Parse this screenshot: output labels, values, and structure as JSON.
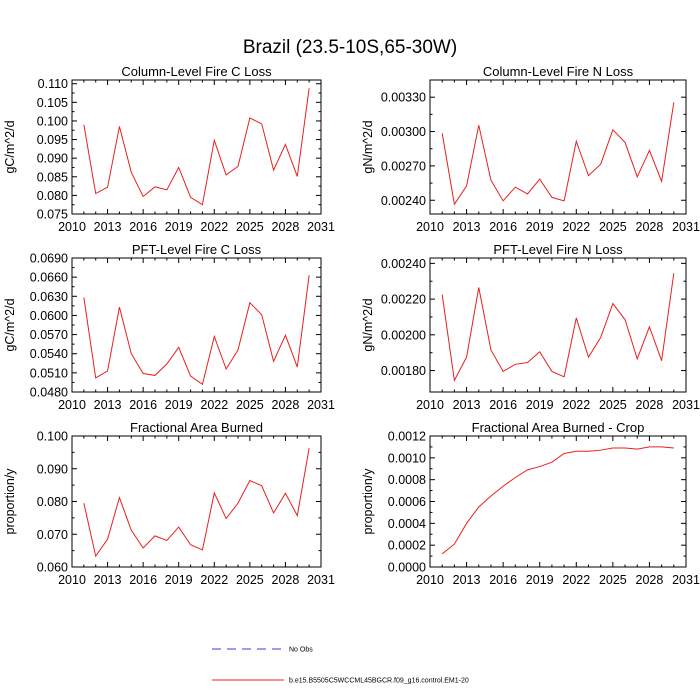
{
  "figure_title": "Brazil (23.5-10S,65-30W)",
  "colors": {
    "model": "#e8201e",
    "obs": "#3b3bd6",
    "axis": "#000000"
  },
  "legend": [
    {
      "label": "No Obs",
      "style": "dashed",
      "color": "#3b3bd6"
    },
    {
      "label": "b.e15.B5505C5WCCML45BGCR.f09_g16.control.EM1-20",
      "style": "solid",
      "color": "#e8201e"
    }
  ],
  "chart_data": [
    {
      "type": "line",
      "position": "top-left",
      "title": "Column-Level Fire C Loss",
      "ylabel": "gC/m^2/d",
      "xlabel": "",
      "xlim": [
        2010,
        2031
      ],
      "ylim": [
        0.075,
        0.111
      ],
      "xticks": [
        2010,
        2013,
        2016,
        2019,
        2022,
        2025,
        2028,
        2031
      ],
      "xtick_labels": [
        "2010",
        "2013",
        "2016",
        "2019",
        "2022",
        "2025",
        "2028",
        "2031"
      ],
      "yticks": [
        0.075,
        0.08,
        0.085,
        0.09,
        0.095,
        0.1,
        0.105,
        0.11
      ],
      "ytick_labels": [
        "0.075",
        "0.080",
        "0.085",
        "0.090",
        "0.095",
        "0.100",
        "0.105",
        "0.110"
      ],
      "series": [
        {
          "name": "b.e15.B5505C5WCCML45BGCR.f09_g16.control.EM1-20",
          "x": [
            2011,
            2012,
            2013,
            2014,
            2015,
            2016,
            2017,
            2018,
            2019,
            2020,
            2021,
            2022,
            2023,
            2024,
            2025,
            2026,
            2027,
            2028,
            2029,
            2030
          ],
          "values": [
            0.099,
            0.0805,
            0.0822,
            0.0985,
            0.0862,
            0.0797,
            0.0823,
            0.0815,
            0.0875,
            0.0795,
            0.0775,
            0.0948,
            0.0855,
            0.0878,
            0.1008,
            0.0992,
            0.0868,
            0.0937,
            0.0851,
            0.1088
          ]
        }
      ]
    },
    {
      "type": "line",
      "position": "top-right",
      "title": "Column-Level Fire N Loss",
      "ylabel": "gN/m^2/d",
      "xlabel": "",
      "xlim": [
        2010,
        2031
      ],
      "ylim": [
        0.00228,
        0.00345
      ],
      "xticks": [
        2010,
        2013,
        2016,
        2019,
        2022,
        2025,
        2028,
        2031
      ],
      "xtick_labels": [
        "2010",
        "2013",
        "2016",
        "2019",
        "2022",
        "2025",
        "2028",
        "2031"
      ],
      "yticks": [
        0.0024,
        0.0027,
        0.003,
        0.0033
      ],
      "ytick_labels": [
        "0.00240",
        "0.00270",
        "0.00300",
        "0.00330"
      ],
      "series": [
        {
          "name": "b.e15.B5505C5WCCML45BGCR.f09_g16.control.EM1-20",
          "x": [
            2011,
            2012,
            2013,
            2014,
            2015,
            2016,
            2017,
            2018,
            2019,
            2020,
            2021,
            2022,
            2023,
            2024,
            2025,
            2026,
            2027,
            2028,
            2029,
            2030
          ],
          "values": [
            0.002985,
            0.002365,
            0.002525,
            0.003055,
            0.002575,
            0.002395,
            0.002515,
            0.002455,
            0.002585,
            0.002425,
            0.002395,
            0.002915,
            0.002615,
            0.002715,
            0.003015,
            0.002905,
            0.002605,
            0.002835,
            0.002565,
            0.003255
          ]
        }
      ]
    },
    {
      "type": "line",
      "position": "middle-left",
      "title": "PFT-Level Fire C Loss",
      "ylabel": "gC/m^2/d",
      "xlabel": "",
      "xlim": [
        2010,
        2031
      ],
      "ylim": [
        0.048,
        0.069
      ],
      "xticks": [
        2010,
        2013,
        2016,
        2019,
        2022,
        2025,
        2028,
        2031
      ],
      "xtick_labels": [
        "2010",
        "2013",
        "2016",
        "2019",
        "2022",
        "2025",
        "2028",
        "2031"
      ],
      "yticks": [
        0.048,
        0.051,
        0.054,
        0.057,
        0.06,
        0.063,
        0.066,
        0.069
      ],
      "ytick_labels": [
        "0.0480",
        "0.0510",
        "0.0540",
        "0.0570",
        "0.0600",
        "0.0630",
        "0.0660",
        "0.0690"
      ],
      "series": [
        {
          "name": "b.e15.B5505C5WCCML45BGCR.f09_g16.control.EM1-20",
          "x": [
            2011,
            2012,
            2013,
            2014,
            2015,
            2016,
            2017,
            2018,
            2019,
            2020,
            2021,
            2022,
            2023,
            2024,
            2025,
            2026,
            2027,
            2028,
            2029,
            2030
          ],
          "values": [
            0.0628,
            0.0502,
            0.0513,
            0.0613,
            0.054,
            0.0509,
            0.0506,
            0.0524,
            0.055,
            0.0505,
            0.0492,
            0.0567,
            0.0516,
            0.0546,
            0.062,
            0.0601,
            0.0528,
            0.0569,
            0.0519,
            0.0663
          ]
        }
      ]
    },
    {
      "type": "line",
      "position": "middle-right",
      "title": "PFT-Level Fire N Loss",
      "ylabel": "gN/m^2/d",
      "xlabel": "",
      "xlim": [
        2010,
        2031
      ],
      "ylim": [
        0.00168,
        0.00243
      ],
      "xticks": [
        2010,
        2013,
        2016,
        2019,
        2022,
        2025,
        2028,
        2031
      ],
      "xtick_labels": [
        "2010",
        "2013",
        "2016",
        "2019",
        "2022",
        "2025",
        "2028",
        "2031"
      ],
      "yticks": [
        0.0018,
        0.002,
        0.0022,
        0.0024
      ],
      "ytick_labels": [
        "0.00180",
        "0.00200",
        "0.00220",
        "0.00240"
      ],
      "series": [
        {
          "name": "b.e15.B5505C5WCCML45BGCR.f09_g16.control.EM1-20",
          "x": [
            2011,
            2012,
            2013,
            2014,
            2015,
            2016,
            2017,
            2018,
            2019,
            2020,
            2021,
            2022,
            2023,
            2024,
            2025,
            2026,
            2027,
            2028,
            2029,
            2030
          ],
          "values": [
            0.002225,
            0.001745,
            0.001875,
            0.002265,
            0.001915,
            0.001795,
            0.001835,
            0.001845,
            0.001905,
            0.001795,
            0.001765,
            0.002095,
            0.001875,
            0.001985,
            0.002175,
            0.002085,
            0.001865,
            0.002045,
            0.001855,
            0.002345
          ]
        }
      ]
    },
    {
      "type": "line",
      "position": "bottom-left",
      "title": "Fractional Area Burned",
      "ylabel": "proportion/y",
      "xlabel": "",
      "xlim": [
        2010,
        2031
      ],
      "ylim": [
        0.06,
        0.1
      ],
      "xticks": [
        2010,
        2013,
        2016,
        2019,
        2022,
        2025,
        2028,
        2031
      ],
      "xtick_labels": [
        "2010",
        "2013",
        "2016",
        "2019",
        "2022",
        "2025",
        "2028",
        "2031"
      ],
      "yticks": [
        0.06,
        0.07,
        0.08,
        0.09,
        0.1
      ],
      "ytick_labels": [
        "0.060",
        "0.070",
        "0.080",
        "0.090",
        "0.100"
      ],
      "series": [
        {
          "name": "b.e15.B5505C5WCCML45BGCR.f09_g16.control.EM1-20",
          "x": [
            2011,
            2012,
            2013,
            2014,
            2015,
            2016,
            2017,
            2018,
            2019,
            2020,
            2021,
            2022,
            2023,
            2024,
            2025,
            2026,
            2027,
            2028,
            2029,
            2030
          ],
          "values": [
            0.0795,
            0.0633,
            0.0685,
            0.0812,
            0.0712,
            0.0658,
            0.0695,
            0.0681,
            0.0722,
            0.0668,
            0.0652,
            0.0826,
            0.0748,
            0.0795,
            0.0864,
            0.0848,
            0.0765,
            0.0825,
            0.0757,
            0.0963
          ]
        }
      ]
    },
    {
      "type": "line",
      "position": "bottom-right",
      "title": "Fractional Area Burned - Crop",
      "ylabel": "proportion/y",
      "xlabel": "",
      "xlim": [
        2010,
        2031
      ],
      "ylim": [
        0,
        0.0012
      ],
      "xticks": [
        2010,
        2013,
        2016,
        2019,
        2022,
        2025,
        2028,
        2031
      ],
      "xtick_labels": [
        "2010",
        "2013",
        "2016",
        "2019",
        "2022",
        "2025",
        "2028",
        "2031"
      ],
      "yticks": [
        0,
        0.0002,
        0.0004,
        0.0006,
        0.0008,
        0.001,
        0.0012
      ],
      "ytick_labels": [
        "0.0000",
        "0.0002",
        "0.0004",
        "0.0006",
        "0.0008",
        "0.0010",
        "0.0012"
      ],
      "series": [
        {
          "name": "b.e15.B5505C5WCCML45BGCR.f09_g16.control.EM1-20",
          "x": [
            2011,
            2012,
            2013,
            2014,
            2015,
            2016,
            2017,
            2018,
            2019,
            2020,
            2021,
            2022,
            2023,
            2024,
            2025,
            2026,
            2027,
            2028,
            2029,
            2030
          ],
          "values": [
            0.00012,
            0.00021,
            0.0004,
            0.00055,
            0.00065,
            0.00074,
            0.00082,
            0.00089,
            0.00092,
            0.00096,
            0.00104,
            0.00106,
            0.00106,
            0.00107,
            0.00109,
            0.00109,
            0.00108,
            0.0011,
            0.0011,
            0.00109
          ]
        }
      ]
    }
  ]
}
